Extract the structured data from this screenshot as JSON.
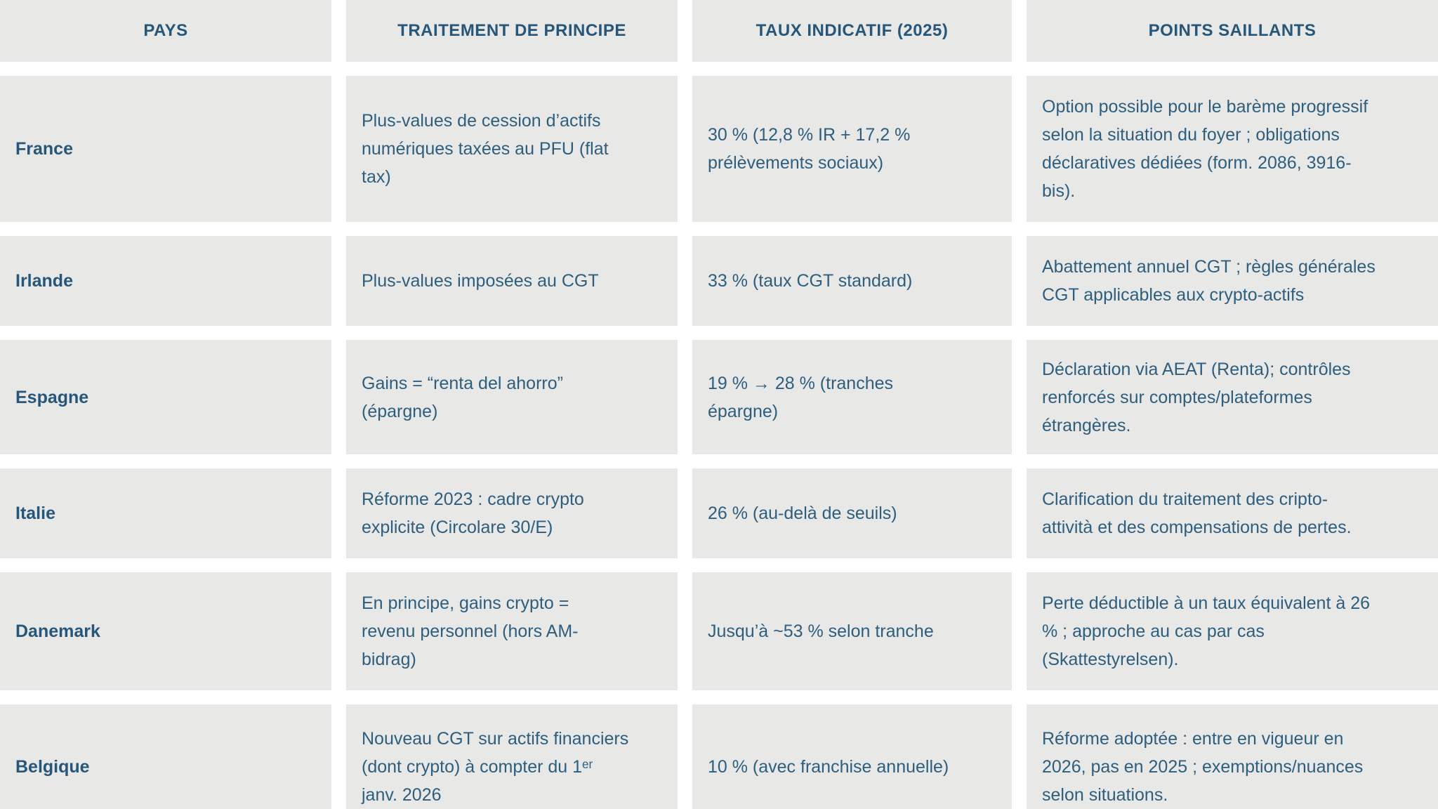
{
  "table": {
    "columns": [
      "PAYS",
      "TRAITEMENT DE PRINCIPE",
      "TAUX INDICATIF (2025)",
      "POINTS SAILLANTS"
    ],
    "rows": [
      {
        "country": "France",
        "treatment": "Plus-values de cession d’actifs\nnumériques taxées au PFU (flat\ntax)",
        "rate": "30 % (12,8 % IR + 17,2 %\nprélèvements sociaux)",
        "highlights": "Option possible pour le barème progressif\nselon la situation du foyer ; obligations\ndéclaratives dédiées (form. 2086, 3916-\nbis)."
      },
      {
        "country": "Irlande",
        "treatment": "Plus-values imposées au CGT",
        "rate": "33 % (taux CGT standard)",
        "highlights": "Abattement annuel CGT ; règles générales\nCGT applicables aux crypto-actifs"
      },
      {
        "country": "Espagne",
        "treatment": "Gains = “renta del ahorro”\n(épargne)",
        "rate": "19 % → 28 % (tranches\népargne)",
        "highlights": "Déclaration via AEAT (Renta); contrôles\nrenforcés sur comptes/plateformes\nétrangères."
      },
      {
        "country": "Italie",
        "treatment": "Réforme 2023 : cadre crypto\nexplicite (Circolare 30/E)",
        "rate": "26 % (au-delà de seuils)",
        "highlights": "Clarification du traitement des cripto-\nattività et des compensations de pertes."
      },
      {
        "country": "Danemark",
        "treatment": "En principe, gains crypto =\nrevenu personnel (hors AM-\nbidrag)",
        "rate": "Jusqu’à ~53 % selon tranche",
        "highlights": "Perte déductible à un taux équivalent à 26\n% ; approche au cas par cas\n(Skattestyrelsen)."
      },
      {
        "country": "Belgique",
        "treatment": "Nouveau CGT sur actifs financiers\n(dont crypto) à compter du 1ᵉʳ\njanv. 2026",
        "rate": "10 % (avec franchise annuelle)",
        "highlights": "Réforme adoptée : entre en vigueur en\n2026, pas en 2025 ; exemptions/nuances\nselon situations."
      }
    ],
    "colors": {
      "cell_background": "#e8e8e7",
      "gap_background": "#ffffff",
      "body_text": "#2e5e7e",
      "bold_text": "#26567a"
    }
  }
}
